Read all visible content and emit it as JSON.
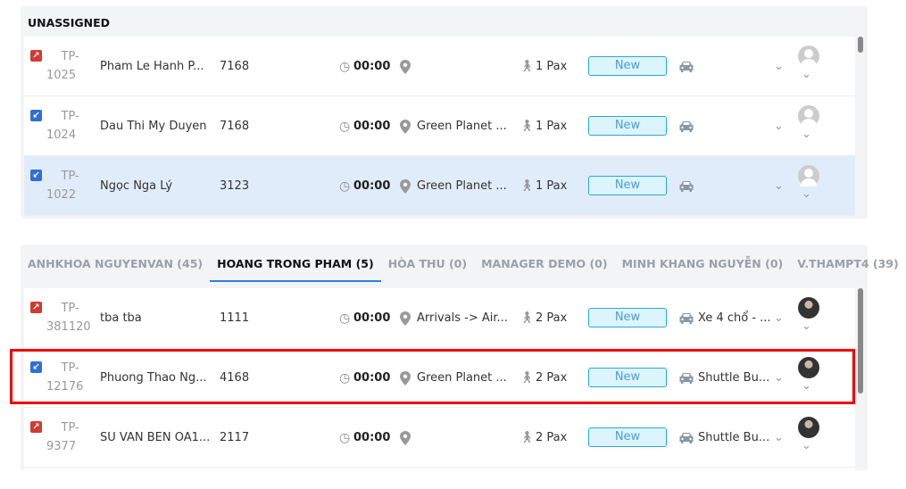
{
  "unassigned": {
    "title": "UNASSIGNED",
    "rows": [
      {
        "dir": "out",
        "id1": "TP-",
        "id2": "1025",
        "name": "Pham Le Hanh P...",
        "number": "7168",
        "time": "00:00",
        "location": "",
        "pax": "1 Pax",
        "status": "New",
        "vehicle": "",
        "avatar": "default"
      },
      {
        "dir": "in",
        "id1": "TP-",
        "id2": "1024",
        "name": "Dau Thi My Duyen",
        "number": "7168",
        "time": "00:00",
        "location": "Green Planet ...",
        "pax": "1 Pax",
        "status": "New",
        "vehicle": "",
        "avatar": "default"
      },
      {
        "dir": "in",
        "id1": "TP-",
        "id2": "1022",
        "name": "Ngọc Nga Lý",
        "number": "3123",
        "time": "00:00",
        "location": "Green Planet ...",
        "pax": "1 Pax",
        "status": "New",
        "vehicle": "",
        "avatar": "default",
        "selected": true
      }
    ]
  },
  "tabs": [
    {
      "label": "ANHKHOA NGUYENVAN (45)"
    },
    {
      "label": "HOANG TRONG PHAM (5)",
      "active": true
    },
    {
      "label": "HÒA THU (0)"
    },
    {
      "label": "MANAGER DEMO (0)"
    },
    {
      "label": "MINH KHANG NGUYỄN (0)"
    },
    {
      "label": "V.THAMPT4 (39)"
    }
  ],
  "assigned": {
    "rows": [
      {
        "dir": "out",
        "id1": "TP-",
        "id2": "381120",
        "name": "tba tba",
        "number": "1111",
        "time": "00:00",
        "location": "Arrivals -> Air...",
        "pax": "2 Pax",
        "status": "New",
        "vehicle": "Xe 4 chổ - ...",
        "avatar": "photo"
      },
      {
        "dir": "in",
        "id1": "TP-",
        "id2": "12176",
        "name": "Phuong Thao Ng...",
        "number": "4168",
        "time": "00:00",
        "location": "Green Planet ...",
        "pax": "2 Pax",
        "status": "New",
        "vehicle": "Shuttle Bu...",
        "avatar": "photo",
        "highlighted": true
      },
      {
        "dir": "out",
        "id1": "TP-",
        "id2": "9377",
        "name": "SU VAN BEN OA1...",
        "number": "2117",
        "time": "00:00",
        "location": "",
        "pax": "2 Pax",
        "status": "New",
        "vehicle": "Shuttle Bu...",
        "avatar": "photo"
      }
    ]
  },
  "colors": {
    "accent": "#2f7ee0",
    "badge_border": "#29a9d9",
    "highlight": "#ee0000",
    "outbound": "#d23a32",
    "inbound": "#2f6fd6"
  }
}
